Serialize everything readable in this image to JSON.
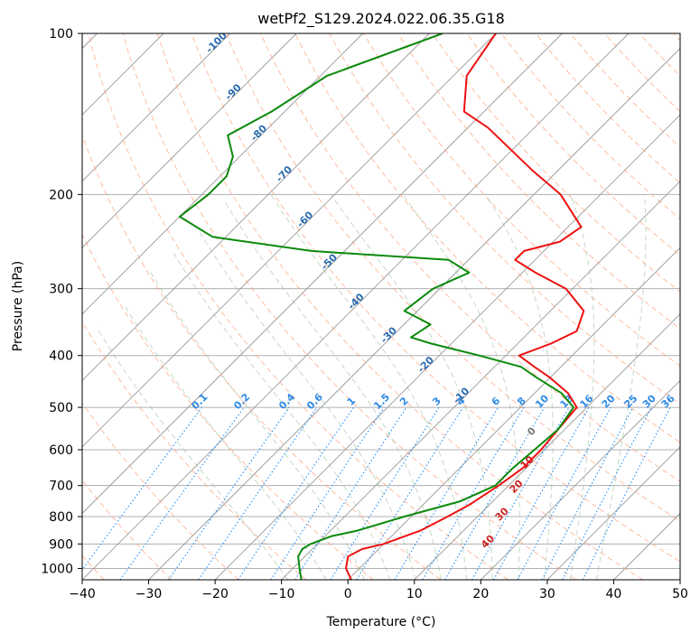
{
  "chart_data": {
    "type": "line",
    "chart_kind": "skew-T log-p",
    "title": "wetPf2_S129.2024.022.06.35.G18",
    "xlabel": "Temperature (°C)",
    "ylabel": "Pressure (hPa)",
    "xlim": [
      -40,
      50
    ],
    "ylim": [
      1050,
      100
    ],
    "y_scale": "log",
    "grid": true,
    "x_ticks": [
      "−40",
      "−30",
      "−20",
      "−10",
      "0",
      "10",
      "20",
      "30",
      "40",
      "50"
    ],
    "y_ticks": [
      "100",
      "200",
      "300",
      "400",
      "500",
      "600",
      "700",
      "800",
      "900",
      "1000"
    ],
    "series": [
      {
        "role": "temperature",
        "color": "#ee1111",
        "points": [
          [
            1050,
            0.5
          ],
          [
            1000,
            -2
          ],
          [
            950,
            -3.5
          ],
          [
            920,
            -2.5
          ],
          [
            900,
            0
          ],
          [
            850,
            3.5
          ],
          [
            800,
            5.5
          ],
          [
            760,
            7
          ],
          [
            700,
            8.5
          ],
          [
            650,
            9.5
          ],
          [
            600,
            9.5
          ],
          [
            550,
            9
          ],
          [
            500,
            8.5
          ],
          [
            470,
            5
          ],
          [
            440,
            0
          ],
          [
            420,
            -4
          ],
          [
            400,
            -8
          ],
          [
            380,
            -5
          ],
          [
            360,
            -3
          ],
          [
            330,
            -5
          ],
          [
            300,
            -11
          ],
          [
            280,
            -18
          ],
          [
            265,
            -23
          ],
          [
            255,
            -23
          ],
          [
            245,
            -19
          ],
          [
            230,
            -18
          ],
          [
            200,
            -26
          ],
          [
            180,
            -34
          ],
          [
            150,
            -47
          ],
          [
            140,
            -53
          ],
          [
            120,
            -58
          ],
          [
            100,
            -60
          ]
        ]
      },
      {
        "role": "dewpoint",
        "color": "#0b8a0b",
        "points": [
          [
            1050,
            -7
          ],
          [
            1000,
            -9
          ],
          [
            950,
            -11
          ],
          [
            920,
            -11.5
          ],
          [
            900,
            -11
          ],
          [
            870,
            -9
          ],
          [
            850,
            -6
          ],
          [
            800,
            -1
          ],
          [
            750,
            5
          ],
          [
            700,
            8
          ],
          [
            650,
            8
          ],
          [
            600,
            8.5
          ],
          [
            550,
            9
          ],
          [
            500,
            8
          ],
          [
            470,
            4
          ],
          [
            440,
            -2
          ],
          [
            420,
            -6
          ],
          [
            400,
            -14
          ],
          [
            380,
            -23
          ],
          [
            370,
            -27
          ],
          [
            350,
            -26
          ],
          [
            330,
            -32
          ],
          [
            300,
            -31
          ],
          [
            280,
            -28
          ],
          [
            265,
            -33
          ],
          [
            255,
            -55
          ],
          [
            240,
            -72
          ],
          [
            220,
            -80
          ],
          [
            200,
            -79
          ],
          [
            185,
            -79
          ],
          [
            170,
            -81
          ],
          [
            155,
            -85
          ],
          [
            140,
            -82
          ],
          [
            120,
            -79
          ],
          [
            100,
            -68
          ]
        ]
      }
    ],
    "dry_adiabat_labels": [
      "-100",
      "-90",
      "-80",
      "-70",
      "-60",
      "-50",
      "-40",
      "-30",
      "-20",
      "-10"
    ],
    "dry_adiabat_label_color": "#2b6cb0",
    "mixing_ratio_labels": [
      "0.1",
      "0.2",
      "0.4",
      "0.6",
      "1",
      "1.5",
      "2",
      "3",
      "4",
      "6",
      "8",
      "10",
      "13",
      "16",
      "20",
      "25",
      "30",
      "36"
    ],
    "mixing_ratio_label_color": "#2e8ae6",
    "moist_adiabat_labels": [
      "0",
      "10",
      "20",
      "30",
      "40"
    ],
    "moist_adiabat_label_colors": [
      "#777777",
      "#cc2222",
      "#cc2222",
      "#cc2222",
      "#cc2222"
    ],
    "line_colors": {
      "isotherm": "#999999",
      "dry_adiabat": "#ffa07a",
      "moist_adiabat": "#8fbc8f",
      "mixing_ratio": "#1e90ff",
      "dry_adiabat_deep": "#c8a27a"
    }
  }
}
